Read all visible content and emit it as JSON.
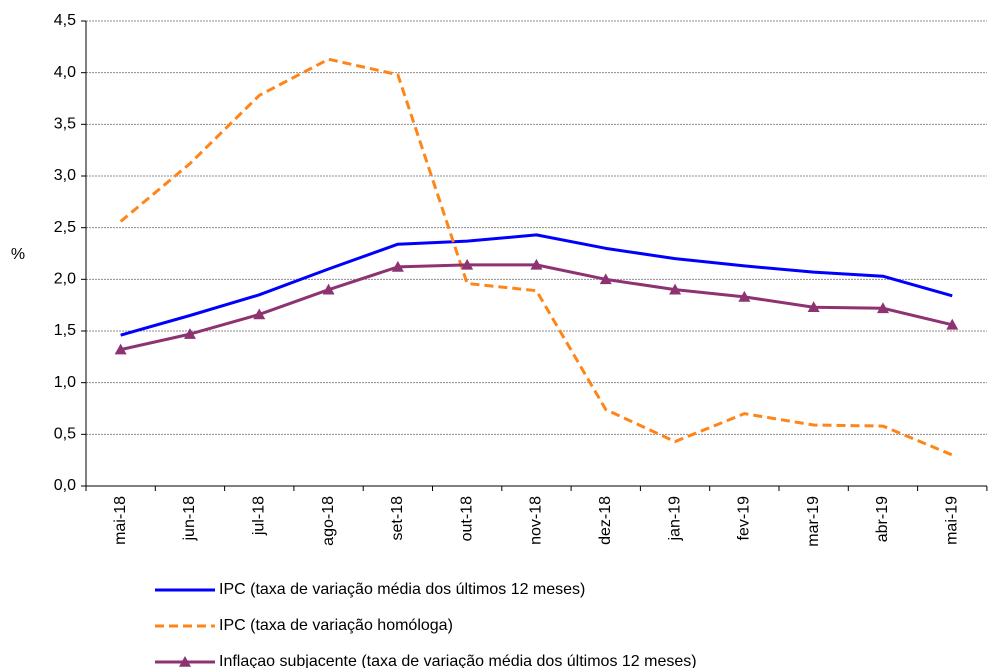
{
  "chart_data": {
    "type": "line",
    "y_label": "%",
    "categories": [
      "mai-18",
      "jun-18",
      "jul-18",
      "ago-18",
      "set-18",
      "out-18",
      "nov-18",
      "dez-18",
      "jan-19",
      "fev-19",
      "mar-19",
      "abr-19",
      "mai-19"
    ],
    "series": [
      {
        "name": "IPC (taxa de variação média dos últimos 12 meses)",
        "color": "#0000ff",
        "dash": false,
        "marker": "none",
        "values": [
          1.46,
          1.65,
          1.85,
          2.1,
          2.34,
          2.37,
          2.43,
          2.3,
          2.2,
          2.13,
          2.07,
          2.03,
          1.84
        ]
      },
      {
        "name": "IPC (taxa de variação homóloga)",
        "color": "#ff8519",
        "dash": true,
        "marker": "none",
        "values": [
          2.56,
          3.12,
          3.78,
          4.13,
          3.98,
          1.96,
          1.89,
          0.74,
          0.43,
          0.7,
          0.59,
          0.58,
          0.3
        ]
      },
      {
        "name": "Inflaçao subjacente (taxa de variação média dos últimos 12 meses)",
        "color": "#8e3371",
        "dash": false,
        "marker": "triangle",
        "values": [
          1.32,
          1.47,
          1.66,
          1.9,
          2.12,
          2.14,
          2.14,
          2.0,
          1.9,
          1.83,
          1.73,
          1.72,
          1.56
        ]
      }
    ],
    "ylim": [
      0,
      4.5
    ],
    "yticks": [
      {
        "value": 0,
        "label": "0,0"
      },
      {
        "value": 0.5,
        "label": "0,5"
      },
      {
        "value": 1,
        "label": "1,0"
      },
      {
        "value": 1.5,
        "label": "1,5"
      },
      {
        "value": 2,
        "label": "2,0"
      },
      {
        "value": 2.5,
        "label": "2,5"
      },
      {
        "value": 3,
        "label": "3,0"
      },
      {
        "value": 3.5,
        "label": "3,5"
      },
      {
        "value": 4,
        "label": "4,0"
      },
      {
        "value": 4.5,
        "label": "4,5"
      }
    ],
    "grid": true,
    "legend": "bottom"
  }
}
